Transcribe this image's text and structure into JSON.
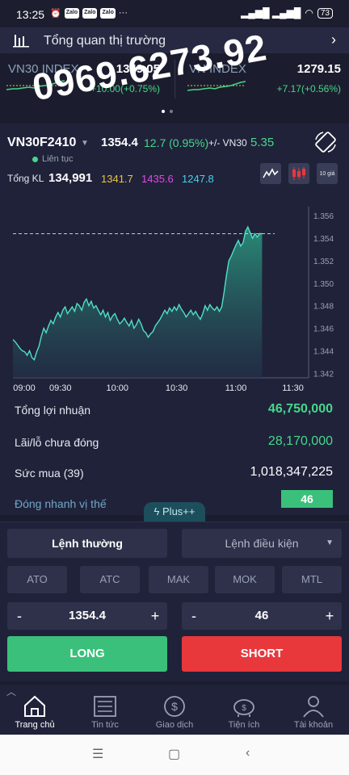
{
  "status_bar": {
    "time": "13:25",
    "notification_icons": [
      "alarm-icon",
      "zalo-icon",
      "zalo-icon",
      "zalo-icon"
    ],
    "more": "···",
    "battery": "73"
  },
  "market_header": {
    "title": "Tổng quan thị trường"
  },
  "indices": [
    {
      "name": "VN30 INDEX",
      "value": "1349.05",
      "change": "+10.00(+0.75%)"
    },
    {
      "name": "VN INDEX",
      "value": "1279.15",
      "change": "+7.17(+0.56%)"
    }
  ],
  "contract": {
    "code": "VN30F2410",
    "price": "1354.4",
    "change": "12.7 (0.95%)",
    "basis_label": "+/- VN30",
    "basis_value": "5.35",
    "session": "Liên tục",
    "volume_label": "Tổng KL",
    "volume": "134,991",
    "reference": "1341.7",
    "ceiling": "1435.6",
    "floor": "1247.8",
    "ten_level_label": "10 giá"
  },
  "watermark": "0969.6273.92",
  "chart_data": {
    "type": "area",
    "title": "",
    "xlabel": "",
    "ylabel": "",
    "x_ticks": [
      "09:00",
      "09:30",
      "10:00",
      "10:30",
      "11:00",
      "11:30"
    ],
    "y_ticks": [
      "1.356",
      "1.354",
      "1.352",
      "1.350",
      "1.348",
      "1.346",
      "1.344",
      "1.342"
    ],
    "ylim": [
      1341.6,
      1356.8
    ],
    "reference_line": 1354.4,
    "series": [
      {
        "values": [
          1345.0,
          1344.8,
          1344.5,
          1344.2,
          1344.0,
          1343.9,
          1343.6,
          1344.0,
          1343.4,
          1343.2,
          1343.9,
          1344.4,
          1345.3,
          1346.0,
          1345.6,
          1346.2,
          1346.7,
          1346.4,
          1347.0,
          1347.4,
          1347.0,
          1347.6,
          1347.9,
          1347.3,
          1347.6,
          1347.9,
          1347.5,
          1348.2,
          1348.0,
          1347.6,
          1348.3,
          1348.6,
          1348.0,
          1348.4,
          1347.8,
          1348.0,
          1347.6,
          1347.2,
          1347.6,
          1347.0,
          1347.4,
          1346.7,
          1347.1,
          1347.3,
          1346.8,
          1346.4,
          1346.6,
          1346.9,
          1346.5,
          1346.2,
          1346.7,
          1346.0,
          1346.3,
          1346.8,
          1346.4,
          1345.8,
          1345.6,
          1345.2,
          1345.5,
          1345.7,
          1346.2,
          1346.5,
          1346.8,
          1347.2,
          1347.6,
          1347.3,
          1347.8,
          1347.5,
          1347.9,
          1347.6,
          1348.1,
          1347.7,
          1347.4,
          1347.0,
          1347.3,
          1347.6,
          1347.2,
          1347.5,
          1347.1,
          1346.8,
          1347.3,
          1348.0,
          1347.6,
          1348.1,
          1347.8,
          1347.6,
          1347.9,
          1347.5,
          1347.9,
          1349.2,
          1350.7,
          1352.0,
          1352.4,
          1352.9,
          1353.4,
          1353.8,
          1353.3,
          1353.6,
          1354.6,
          1355.0,
          1354.5,
          1354.0,
          1354.4,
          1354.1,
          1354.4,
          1354.4
        ]
      }
    ]
  },
  "stats": {
    "profit_label": "Tổng lợi nhuận",
    "profit_value": "46,750,000",
    "unrealized_label": "Lãi/lỗ chưa đóng",
    "unrealized_value": "28,170,000",
    "buying_label": "Sức mua (39)",
    "buying_value": "1,018,347,225",
    "quick_close_label": "Đóng nhanh vị thế",
    "quick_close_value": "46",
    "plus_tab": "Plus++"
  },
  "order": {
    "normal_label": "Lệnh thường",
    "conditional_label": "Lệnh điều kiện",
    "price_types": [
      "ATO",
      "ATC",
      "MAK",
      "MOK",
      "MTL"
    ],
    "price_value": "1354.4",
    "quantity_value": "46",
    "minus": "-",
    "plus": "+",
    "long_label": "LONG",
    "short_label": "SHORT"
  },
  "nav": [
    {
      "label": "Trang chủ",
      "icon": "home-icon",
      "active": true
    },
    {
      "label": "Tin tức",
      "icon": "news-icon",
      "active": false
    },
    {
      "label": "Giao dịch",
      "icon": "dollar-icon",
      "active": false
    },
    {
      "label": "Tiện ích",
      "icon": "piggy-bank-icon",
      "active": false
    },
    {
      "label": "Tài khoản",
      "icon": "user-icon",
      "active": false
    }
  ],
  "colors": {
    "up": "#45d88a",
    "down": "#e8383c",
    "reference": "#e8c44a",
    "ceiling": "#e04ae0",
    "floor": "#4ad0e8",
    "background": "#1b1d2e"
  }
}
